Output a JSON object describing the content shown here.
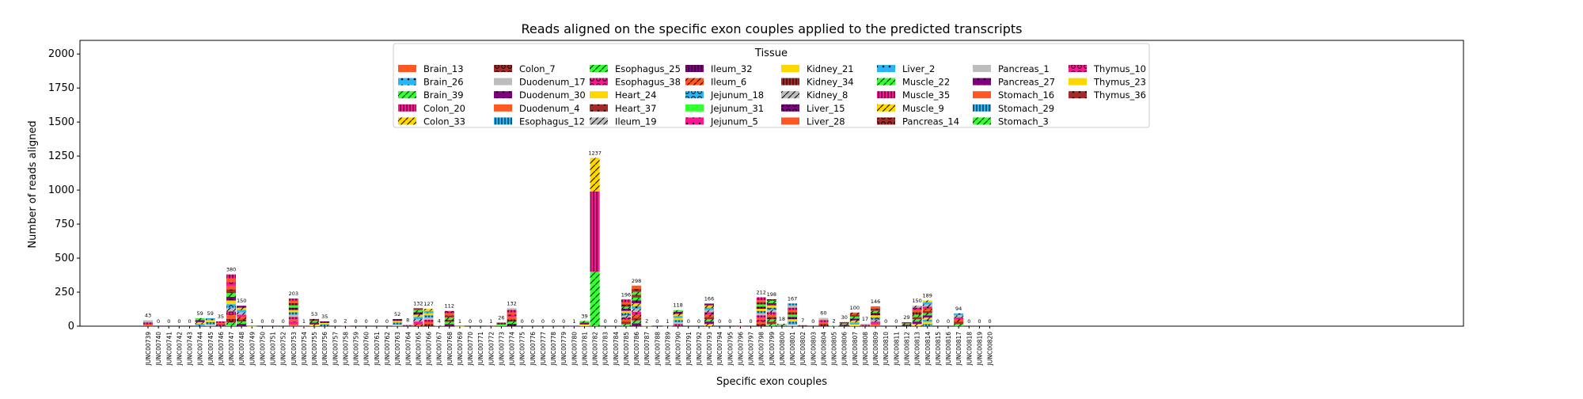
{
  "chart_data": {
    "type": "bar",
    "stacked": true,
    "title": "Reads aligned on the specific exon couples applied to the predicted transcripts",
    "xlabel": "Specific exon couples",
    "ylabel": "Number of reads aligned",
    "ylim": [
      0,
      2100
    ],
    "yticks": [
      0,
      250,
      500,
      750,
      1000,
      1250,
      1500,
      1750,
      2000
    ],
    "grid": false,
    "legend": {
      "title": "Tissue",
      "placement": "upper-center",
      "entries": [
        {
          "name": "Brain_13",
          "color": "#ff5722",
          "hatch": "none"
        },
        {
          "name": "Brain_26",
          "color": "#29b6f6",
          "hatch": "dot"
        },
        {
          "name": "Brain_39",
          "color": "#33ff33",
          "hatch": "slash"
        },
        {
          "name": "Colon_20",
          "color": "#ff1493",
          "hatch": "vbar"
        },
        {
          "name": "Colon_33",
          "color": "#ffd700",
          "hatch": "slash"
        },
        {
          "name": "Colon_7",
          "color": "#a52a2a",
          "hatch": "circle"
        },
        {
          "name": "Duodenum_17",
          "color": "#bdbdbd",
          "hatch": "none"
        },
        {
          "name": "Duodenum_30",
          "color": "#800080",
          "hatch": "dot"
        },
        {
          "name": "Duodenum_4",
          "color": "#ff5722",
          "hatch": "none"
        },
        {
          "name": "Esophagus_12",
          "color": "#29b6f6",
          "hatch": "vbar"
        },
        {
          "name": "Esophagus_25",
          "color": "#33ff33",
          "hatch": "slash"
        },
        {
          "name": "Esophagus_38",
          "color": "#ff1493",
          "hatch": "circle"
        },
        {
          "name": "Heart_24",
          "color": "#ffd700",
          "hatch": "none"
        },
        {
          "name": "Heart_37",
          "color": "#a52a2a",
          "hatch": "dot"
        },
        {
          "name": "Ileum_19",
          "color": "#bdbdbd",
          "hatch": "slash"
        },
        {
          "name": "Ileum_32",
          "color": "#800080",
          "hatch": "vbar"
        },
        {
          "name": "Ileum_6",
          "color": "#ff5722",
          "hatch": "slash"
        },
        {
          "name": "Jejunum_18",
          "color": "#29b6f6",
          "hatch": "circle"
        },
        {
          "name": "Jejunum_31",
          "color": "#33ff33",
          "hatch": "none"
        },
        {
          "name": "Jejunum_5",
          "color": "#ff1493",
          "hatch": "dot"
        },
        {
          "name": "Kidney_21",
          "color": "#ffd700",
          "hatch": "none"
        },
        {
          "name": "Kidney_34",
          "color": "#a52a2a",
          "hatch": "vbar"
        },
        {
          "name": "Kidney_8",
          "color": "#bdbdbd",
          "hatch": "slash"
        },
        {
          "name": "Liver_15",
          "color": "#800080",
          "hatch": "circle"
        },
        {
          "name": "Liver_28",
          "color": "#ff5722",
          "hatch": "none"
        },
        {
          "name": "Liver_2",
          "color": "#29b6f6",
          "hatch": "dot"
        },
        {
          "name": "Muscle_22",
          "color": "#33ff33",
          "hatch": "slash"
        },
        {
          "name": "Muscle_35",
          "color": "#ff1493",
          "hatch": "vbar"
        },
        {
          "name": "Muscle_9",
          "color": "#ffd700",
          "hatch": "slash"
        },
        {
          "name": "Pancreas_14",
          "color": "#a52a2a",
          "hatch": "circle"
        },
        {
          "name": "Pancreas_1",
          "color": "#bdbdbd",
          "hatch": "none"
        },
        {
          "name": "Pancreas_27",
          "color": "#800080",
          "hatch": "dot"
        },
        {
          "name": "Stomach_16",
          "color": "#ff5722",
          "hatch": "none"
        },
        {
          "name": "Stomach_29",
          "color": "#29b6f6",
          "hatch": "vbar"
        },
        {
          "name": "Stomach_3",
          "color": "#33ff33",
          "hatch": "slash"
        },
        {
          "name": "Thymus_10",
          "color": "#ff1493",
          "hatch": "circle"
        },
        {
          "name": "Thymus_23",
          "color": "#ffd700",
          "hatch": "none"
        },
        {
          "name": "Thymus_36",
          "color": "#a52a2a",
          "hatch": "dot"
        }
      ]
    },
    "categories": [
      "JUNC00739",
      "JUNC00740",
      "JUNC00741",
      "JUNC00742",
      "JUNC00743",
      "JUNC00744",
      "JUNC00745",
      "JUNC00746",
      "JUNC00747",
      "JUNC00748",
      "JUNC00749",
      "JUNC00750",
      "JUNC00751",
      "JUNC00752",
      "JUNC00753",
      "JUNC00754",
      "JUNC00755",
      "JUNC00756",
      "JUNC00757",
      "JUNC00758",
      "JUNC00759",
      "JUNC00760",
      "JUNC00761",
      "JUNC00762",
      "JUNC00763",
      "JUNC00764",
      "JUNC00765",
      "JUNC00766",
      "JUNC00767",
      "JUNC00768",
      "JUNC00769",
      "JUNC00770",
      "JUNC00771",
      "JUNC00772",
      "JUNC00773",
      "JUNC00774",
      "JUNC00775",
      "JUNC00776",
      "JUNC00777",
      "JUNC00778",
      "JUNC00779",
      "JUNC00780",
      "JUNC00781",
      "JUNC00782",
      "JUNC00783",
      "JUNC00784",
      "JUNC00785",
      "JUNC00786",
      "JUNC00787",
      "JUNC00788",
      "JUNC00789",
      "JUNC00790",
      "JUNC00791",
      "JUNC00792",
      "JUNC00793",
      "JUNC00794",
      "JUNC00795",
      "JUNC00796",
      "JUNC00797",
      "JUNC00798",
      "JUNC00799",
      "JUNC00800",
      "JUNC00801",
      "JUNC00802",
      "JUNC00803",
      "JUNC00804",
      "JUNC00805",
      "JUNC00806",
      "JUNC00807",
      "JUNC00808",
      "JUNC00809",
      "JUNC00810",
      "JUNC00811",
      "JUNC00812",
      "JUNC00813",
      "JUNC00814",
      "JUNC00815",
      "JUNC00816",
      "JUNC00817",
      "JUNC00818",
      "JUNC00819",
      "JUNC00820"
    ],
    "totals": [
      43,
      0,
      0,
      0,
      0,
      59,
      59,
      35,
      380,
      150,
      1,
      0,
      0,
      0,
      203,
      1,
      53,
      35,
      0,
      2,
      0,
      0,
      0,
      0,
      52,
      8,
      132,
      127,
      4,
      112,
      1,
      0,
      0,
      1,
      26,
      132,
      0,
      0,
      0,
      0,
      0,
      1,
      39,
      1237,
      0,
      0,
      196,
      298,
      2,
      0,
      1,
      118,
      0,
      0,
      166,
      0,
      0,
      1,
      0,
      212,
      198,
      18,
      167,
      7,
      0,
      60,
      2,
      30,
      100,
      17,
      146,
      0,
      0,
      29,
      150,
      189,
      0,
      0,
      94,
      0,
      0,
      0
    ],
    "segments": {
      "JUNC00782": [
        {
          "tissue": "Muscle_22",
          "value": 400
        },
        {
          "tissue": "Muscle_35",
          "value": 590
        },
        {
          "tissue": "Muscle_9",
          "value": 247
        }
      ]
    }
  }
}
